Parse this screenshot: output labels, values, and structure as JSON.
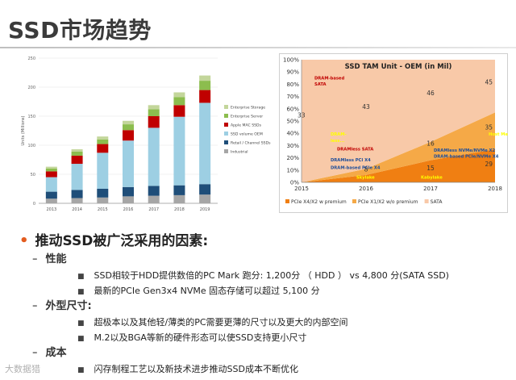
{
  "slide": {
    "title": "SSD市场趋势",
    "watermark": "大数据猎"
  },
  "bullets": {
    "main": "推动SSD被广泛采用的因素:",
    "sections": [
      {
        "heading": "性能",
        "items": [
          "SSD相较于HDD提供数倍的PC Mark 跑分: 1,200分 （ HDD ） vs  4,800 分(SATA SSD)",
          "最新的PCIe Gen3x4 NVMe 固态存储可以超过 5,100 分"
        ]
      },
      {
        "heading": "外型尺寸:",
        "items": [
          "超极本以及其他轻/薄类的PC需要更薄的尺寸以及更大的内部空间",
          "M.2以及BGA等新的硬件形态可以使SSD支持更小尺寸"
        ]
      },
      {
        "heading": "成本",
        "items": [
          "闪存制程工艺以及新技术进步推动SSD成本不断优化"
        ]
      }
    ]
  },
  "chart_data": [
    {
      "type": "bar",
      "title": "",
      "ylabel": "Units (Millions)",
      "categories": [
        "2013",
        "2014",
        "2015",
        "2016",
        "2017",
        "2018",
        "2019"
      ],
      "ylim": [
        0,
        250
      ],
      "yticks": [
        "0",
        "50",
        "100",
        "150",
        "200",
        "250"
      ],
      "series": [
        {
          "name": "Industrial",
          "color": "#a6a6a6",
          "values": [
            8,
            9,
            10,
            12,
            13,
            14,
            15
          ]
        },
        {
          "name": "Retail / Channel SSDs",
          "color": "#1f4e79",
          "values": [
            12,
            14,
            15,
            16,
            17,
            17,
            18
          ]
        },
        {
          "name": "SSD volume OEM",
          "color": "#9dcfe3",
          "values": [
            25,
            45,
            62,
            80,
            100,
            118,
            140
          ]
        },
        {
          "name": "Apple MAC SSDs",
          "color": "#c00000",
          "values": [
            10,
            14,
            15,
            18,
            20,
            20,
            22
          ]
        },
        {
          "name": "Enterprise Server",
          "color": "#8cbd4e",
          "values": [
            5,
            7,
            8,
            10,
            12,
            14,
            16
          ]
        },
        {
          "name": "Enterprise Storage",
          "color": "#c3d69b",
          "values": [
            3,
            4,
            5,
            6,
            7,
            8,
            9
          ]
        }
      ],
      "legend": "right"
    },
    {
      "type": "area",
      "title": "SSD TAM Unit - OEM (in Mil)",
      "x": [
        "2015",
        "2016",
        "2017",
        "2018"
      ],
      "ylim": [
        0,
        100
      ],
      "yticks": [
        "0%",
        "10%",
        "20%",
        "30%",
        "40%",
        "50%",
        "60%",
        "70%",
        "80%",
        "90%",
        "100%"
      ],
      "series": [
        {
          "name": "PCIe X4/X2 w premium",
          "color": "#f07f12",
          "values": [
            0,
            6,
            18,
            27
          ]
        },
        {
          "name": "PCIe X1/X2 w/o premium",
          "color": "#f5a947",
          "values": [
            0,
            5,
            15,
            30
          ]
        },
        {
          "name": "SATA",
          "color": "#f8c9a8",
          "values": [
            100,
            89,
            67,
            43
          ]
        }
      ],
      "value_labels": [
        {
          "text": "33",
          "x": "2015",
          "y": 53
        },
        {
          "text": "43",
          "x": "2016",
          "y": 60
        },
        {
          "text": "46",
          "x": "2017",
          "y": 71
        },
        {
          "text": "45",
          "x": "2018",
          "y": 80
        },
        {
          "text": "16",
          "x": "2017",
          "y": 30
        },
        {
          "text": "35",
          "x": "2018",
          "y": 43
        },
        {
          "text": "8",
          "x": "2016",
          "y": 9
        },
        {
          "text": "15",
          "x": "2017",
          "y": 10
        },
        {
          "text": "29",
          "x": "2018",
          "y": 13
        }
      ],
      "annotations": [
        {
          "text": "DRAM-based",
          "color": "#c00000",
          "x": 2015.2,
          "y": 84
        },
        {
          "text": "SATA",
          "color": "#c00000",
          "x": 2015.2,
          "y": 79
        },
        {
          "text": "DRAM-",
          "color": "#ffff00",
          "x": 2015.45,
          "y": 38
        },
        {
          "text": "less...",
          "color": "#ffff00",
          "x": 2015.45,
          "y": 33
        },
        {
          "text": "DRAMless SATA",
          "color": "#c00000",
          "x": 2015.55,
          "y": 26
        },
        {
          "text": "DRAMless PCI X4",
          "color": "#1f4e9a",
          "x": 2015.45,
          "y": 17
        },
        {
          "text": "DRAM-based PCIe X4",
          "color": "#1f4e9a",
          "x": 2015.45,
          "y": 11
        },
        {
          "text": "Skylake",
          "color": "#ffff00",
          "x": 2015.85,
          "y": 3
        },
        {
          "text": "Host Memory Buffer",
          "color": "#ffff00",
          "x": 2017.9,
          "y": 38
        },
        {
          "text": "DRAMless NVMe/NVMe X2",
          "color": "#1f4e9a",
          "x": 2017.05,
          "y": 25
        },
        {
          "text": "DRAM-based PCIe/NVMe X4",
          "color": "#1f4e9a",
          "x": 2017.05,
          "y": 20
        },
        {
          "text": "Kabylake",
          "color": "#ffff00",
          "x": 2016.85,
          "y": 3
        }
      ],
      "legend": "bottom"
    }
  ]
}
